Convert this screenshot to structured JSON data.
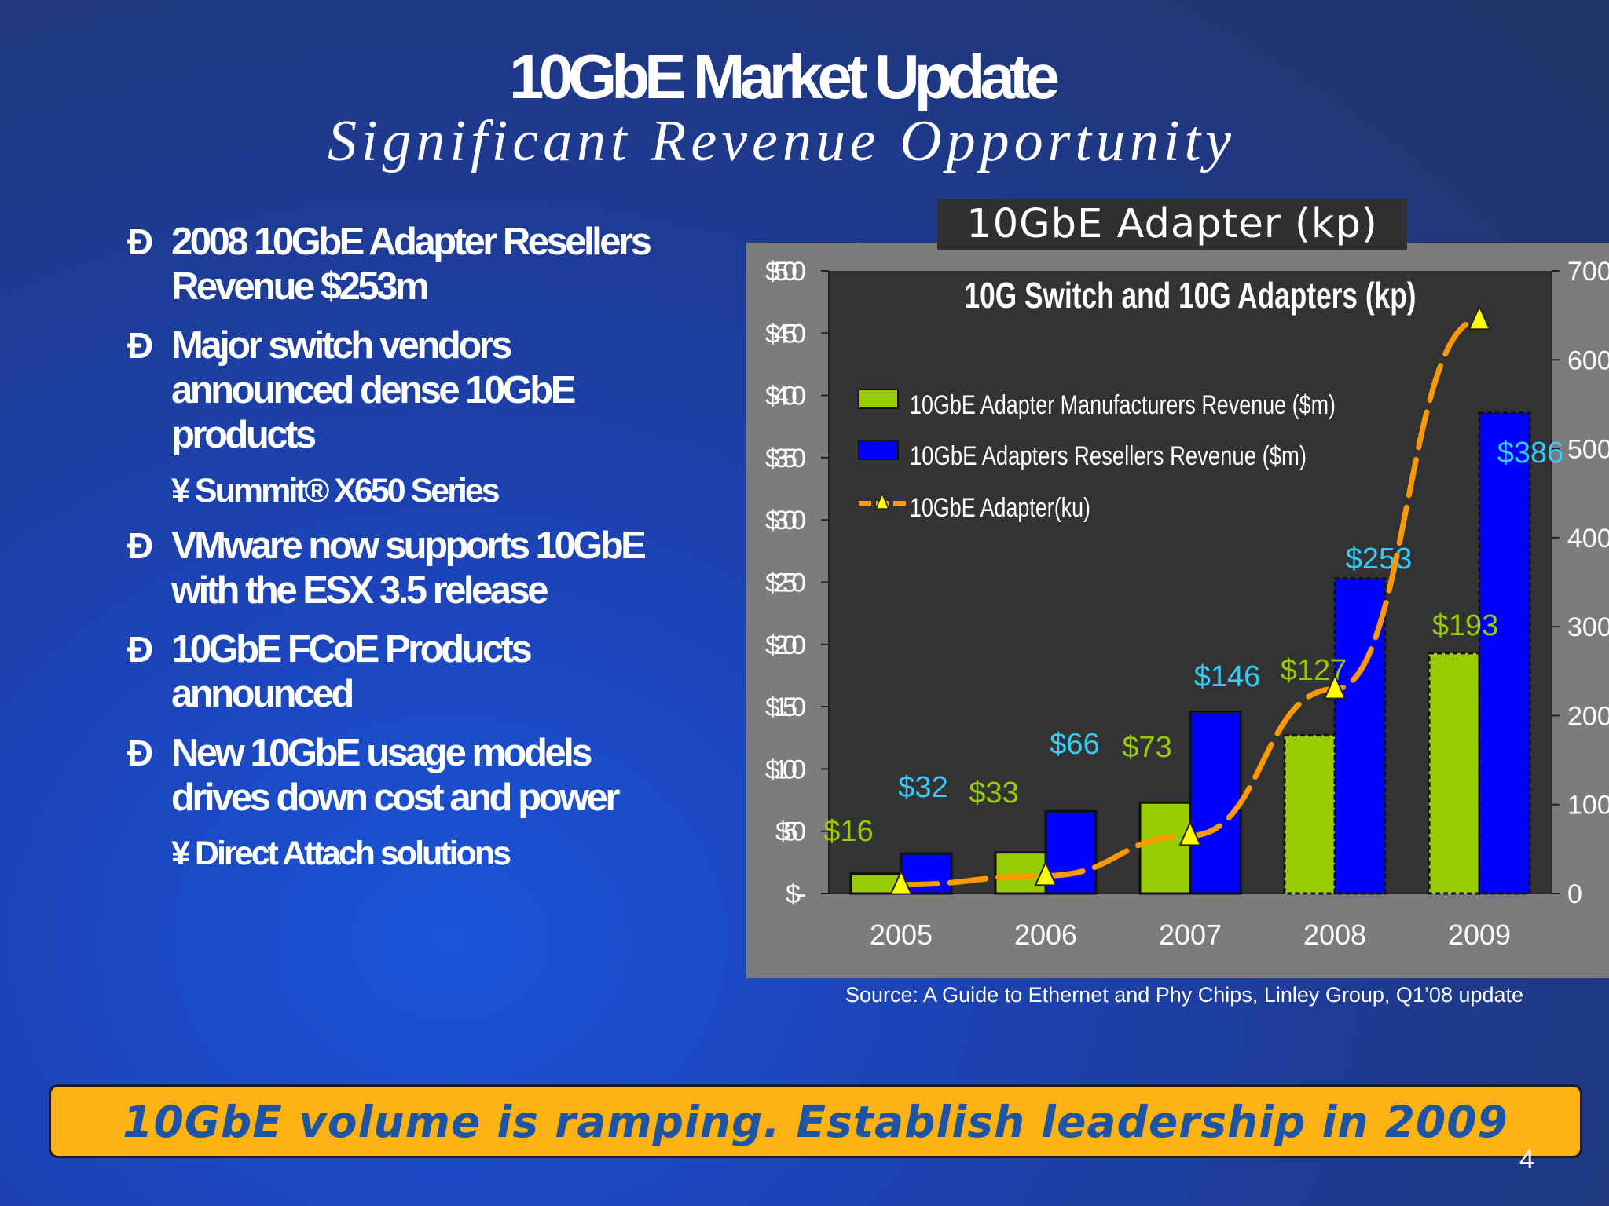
{
  "slide": {
    "title": "10GbE Market Update",
    "subtitle": "Significant Revenue Opportunity",
    "bullet_marker": "Ð",
    "sub_marker": "¥",
    "bullets": [
      {
        "text": "2008 10GbE Adapter Resellers Revenue $253m"
      },
      {
        "text": "Major switch vendors announced dense 10GbE products",
        "sub": "Summit® X650 Series"
      },
      {
        "text": "VMware now supports 10GbE with the ESX 3.5 release"
      },
      {
        "text": "10GbE FCoE Products announced"
      },
      {
        "text": "New 10GbE usage models drives down cost and power",
        "sub": "Direct Attach solutions"
      }
    ],
    "chart_header": "10GbE Adapter (kp)",
    "source": "Source: A Guide to Ethernet and Phy Chips, Linley Group, Q1’08 update",
    "banner": "10GbE volume is ramping. Establish leadership in 2009",
    "page_number": "4"
  },
  "chart_data": {
    "type": "bar",
    "title": "10G Switch and 10G Adapters (kp)",
    "categories": [
      "2005",
      "2006",
      "2007",
      "2008",
      "2009"
    ],
    "series": [
      {
        "name": "10GbE Adapter Manufacturers Revenue ($m)",
        "type": "bar",
        "axis": "left",
        "color": "#99cc00",
        "values": [
          16,
          33,
          73,
          127,
          193
        ],
        "labels": [
          "$16",
          "$33",
          "$73",
          "$127",
          "$193"
        ],
        "label_color": "#99cc00"
      },
      {
        "name": "10GbE Adapters Resellers Revenue ($m)",
        "type": "bar",
        "axis": "left",
        "color": "#0000ff",
        "values": [
          32,
          66,
          146,
          253,
          386
        ],
        "labels": [
          "$32",
          "$66",
          "$146",
          "$253",
          "$386"
        ],
        "label_color": "#33ccff"
      },
      {
        "name": "10GbE Adapter(ku)",
        "type": "line",
        "axis": "right",
        "color": "#ff9900",
        "marker_color": "#ffff00",
        "values": [
          10,
          20,
          65,
          230,
          645
        ]
      }
    ],
    "y_left": {
      "range": [
        0,
        500
      ],
      "ticks": [
        "$-",
        "$50",
        "$100",
        "$150",
        "$200",
        "$250",
        "$300",
        "$350",
        "$400",
        "$450",
        "$500"
      ]
    },
    "y_right": {
      "range": [
        0,
        700
      ],
      "ticks": [
        "0",
        "100",
        "200",
        "300",
        "400",
        "500",
        "600",
        "700"
      ]
    },
    "legend_position": "top-left",
    "plot_background": "#333333",
    "grid": false
  }
}
